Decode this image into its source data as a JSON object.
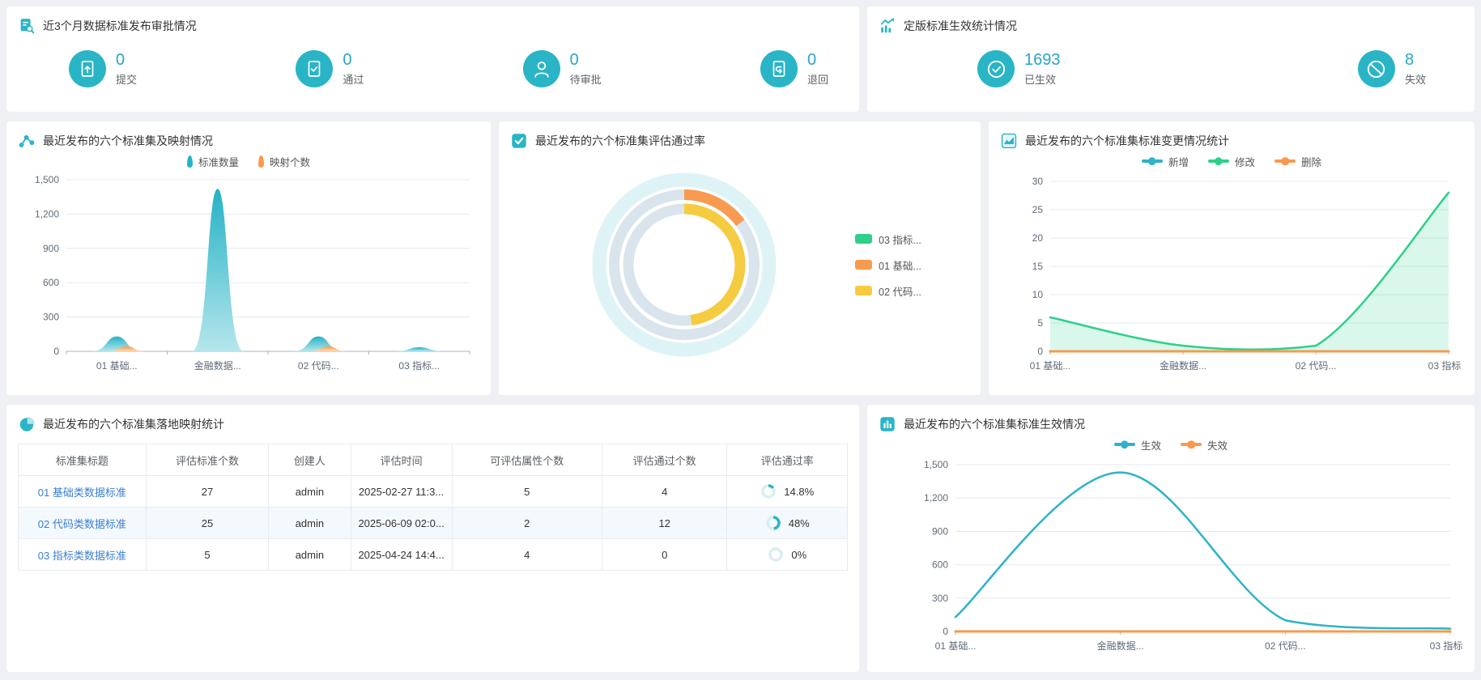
{
  "accent": {
    "teal": "#29b5c6",
    "number_blue": "#27a6c8",
    "green": "#2ed089",
    "orange": "#f79a4d",
    "yellow": "#f5cb40",
    "link_blue": "#3a7fd1"
  },
  "panels": {
    "approval": {
      "title": "近3个月数据标准发布审批情况",
      "stats": [
        {
          "icon": "doc-upload-icon",
          "value": "0",
          "label": "提交"
        },
        {
          "icon": "doc-check-icon",
          "value": "0",
          "label": "通过"
        },
        {
          "icon": "person-icon",
          "value": "0",
          "label": "待审批"
        },
        {
          "icon": "doc-return-icon",
          "value": "0",
          "label": "退回"
        }
      ]
    },
    "effective": {
      "title": "定版标准生效统计情况",
      "stats": [
        {
          "icon": "check-circle-icon",
          "value": "1693",
          "label": "已生效"
        },
        {
          "icon": "ban-icon",
          "value": "8",
          "label": "失效"
        }
      ]
    },
    "mapping_chart": {
      "title": "最近发布的六个标准集及映射情况"
    },
    "pass_rate": {
      "title": "最近发布的六个标准集评估通过率"
    },
    "changes": {
      "title": "最近发布的六个标准集标准变更情况统计"
    },
    "table_panel": {
      "title": "最近发布的六个标准集落地映射统计"
    },
    "effect_chart": {
      "title": "最近发布的六个标准集标准生效情况"
    }
  },
  "table": {
    "headers": [
      "标准集标题",
      "评估标准个数",
      "创建人",
      "评估时间",
      "可评估属性个数",
      "评估通过个数",
      "评估通过率"
    ],
    "rows": [
      {
        "title": "01 基础类数据标准",
        "count": "27",
        "creator": "admin",
        "time": "2025-02-27 11:3...",
        "attrs": "5",
        "passed": "4",
        "rate": "14.8%",
        "rate_pct": 14.8
      },
      {
        "title": "02 代码类数据标准",
        "count": "25",
        "creator": "admin",
        "time": "2025-06-09 02:0...",
        "attrs": "2",
        "passed": "12",
        "rate": "48%",
        "rate_pct": 48
      },
      {
        "title": "03 指标类数据标准",
        "count": "5",
        "creator": "admin",
        "time": "2025-04-24 14:4...",
        "attrs": "4",
        "passed": "0",
        "rate": "0%",
        "rate_pct": 0
      }
    ]
  },
  "chart_data": [
    {
      "id": "mapping",
      "type": "bar",
      "subtype": "pictorial-hill",
      "title": "最近发布的六个标准集及映射情况",
      "categories": [
        "01 基础...",
        "金融数据...",
        "02 代码...",
        "03 指标..."
      ],
      "series": [
        {
          "name": "标准数量",
          "color": "#25b2c6",
          "color2": "#b5e6ec",
          "values": [
            130,
            1420,
            130,
            35
          ]
        },
        {
          "name": "映射个数",
          "color": "#f79a4d",
          "color2": "#fcdcb8",
          "values": [
            45,
            0,
            45,
            0
          ]
        }
      ],
      "ylim": [
        0,
        1500
      ],
      "yticks": [
        "0",
        "300",
        "600",
        "900",
        "1,200",
        "1,500"
      ],
      "legend_position": "top",
      "grid": true
    },
    {
      "id": "pass-rate",
      "type": "pie",
      "subtype": "concentric-rings",
      "title": "最近发布的六个标准集评估通过率",
      "rings": [
        {
          "name": "03 指标...",
          "color": "#2ed089",
          "pct": 0
        },
        {
          "name": "01 基础...",
          "color": "#f89a50",
          "pct": 14.8
        },
        {
          "name": "02 代码...",
          "color": "#f5cb40",
          "pct": 48
        }
      ],
      "legend_position": "right"
    },
    {
      "id": "changes",
      "type": "line",
      "title": "最近发布的六个标准集标准变更情况统计",
      "categories": [
        "01 基础...",
        "金融数据...",
        "02 代码...",
        "03 指标..."
      ],
      "series": [
        {
          "name": "新增",
          "color": "#2eb3c9",
          "values": [
            0,
            0,
            0,
            0
          ]
        },
        {
          "name": "修改",
          "color": "#2ed089",
          "values": [
            6,
            1,
            1,
            28
          ],
          "area": true
        },
        {
          "name": "删除",
          "color": "#f79a4d",
          "values": [
            0,
            0,
            0,
            0
          ]
        }
      ],
      "ylim": [
        0,
        30
      ],
      "yticks": [
        "0",
        "5",
        "10",
        "15",
        "20",
        "25",
        "30"
      ],
      "legend_position": "top",
      "grid": true,
      "smooth": true
    },
    {
      "id": "effect",
      "type": "line",
      "title": "最近发布的六个标准集标准生效情况",
      "categories": [
        "01 基础...",
        "金融数据...",
        "02 代码...",
        "03 指标..."
      ],
      "series": [
        {
          "name": "生效",
          "color": "#2eb3c9",
          "values": [
            130,
            1430,
            100,
            25
          ]
        },
        {
          "name": "失效",
          "color": "#f79a4d",
          "values": [
            0,
            0,
            0,
            0
          ]
        }
      ],
      "ylim": [
        0,
        1500
      ],
      "yticks": [
        "0",
        "300",
        "600",
        "900",
        "1,200",
        "1,500"
      ],
      "legend_position": "top",
      "grid": true,
      "smooth": true
    }
  ]
}
